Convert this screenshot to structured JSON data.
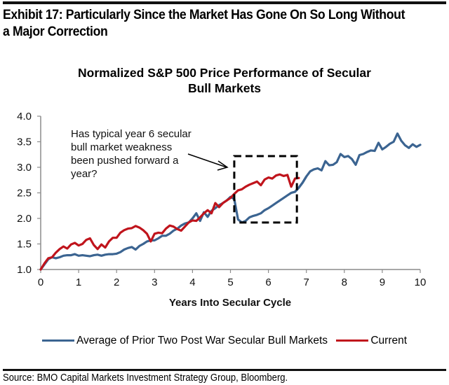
{
  "exhibit": {
    "title_line1": "Exhibit 17: Particularly Since the Market Has Gone On So Long Without",
    "title_line2": "a Major Correction"
  },
  "source": "Source: BMO Capital Markets Investment Strategy Group, Bloomberg.",
  "colors": {
    "blue": "#3b6491",
    "red": "#c0141c",
    "axis": "#8c8c8c",
    "box": "#000000"
  },
  "chart_data": {
    "type": "line",
    "title": "Normalized S&P 500 Price Performance of Secular Bull Markets",
    "title_line1": "Normalized S&P 500 Price Performance of Secular",
    "title_line2": "Bull Markets",
    "xlabel": "Years Into Secular Cycle",
    "ylabel": "",
    "xlim": [
      0,
      10
    ],
    "ylim": [
      1.0,
      4.0
    ],
    "xticks": [
      "0",
      "1",
      "2",
      "3",
      "4",
      "5",
      "6",
      "7",
      "8",
      "9",
      "10"
    ],
    "yticks": [
      "1.0",
      "1.5",
      "2.0",
      "2.5",
      "3.0",
      "3.5",
      "4.0"
    ],
    "grid": false,
    "legend_position": "bottom",
    "annotation": {
      "lines": [
        "Has typical year 6 secular",
        "bull market weakness",
        "been pushed forward a",
        "year?"
      ],
      "box_x_range": [
        5.1,
        6.75
      ],
      "box_y_range": [
        1.92,
        3.22
      ]
    },
    "series": [
      {
        "name": "Average of Prior Two Post War Secular Bull Markets",
        "color": "#3b6491",
        "x": [
          0,
          0.1,
          0.2,
          0.3,
          0.4,
          0.5,
          0.6,
          0.7,
          0.8,
          0.9,
          1.0,
          1.1,
          1.2,
          1.3,
          1.4,
          1.5,
          1.6,
          1.7,
          1.8,
          1.9,
          2.0,
          2.1,
          2.2,
          2.3,
          2.4,
          2.5,
          2.6,
          2.7,
          2.8,
          2.9,
          3.0,
          3.1,
          3.2,
          3.3,
          3.4,
          3.5,
          3.6,
          3.7,
          3.8,
          3.9,
          4.0,
          4.1,
          4.2,
          4.3,
          4.4,
          4.5,
          4.6,
          4.7,
          4.8,
          4.9,
          5.0,
          5.1,
          5.2,
          5.3,
          5.4,
          5.5,
          5.6,
          5.7,
          5.8,
          5.9,
          6.0,
          6.1,
          6.2,
          6.3,
          6.4,
          6.5,
          6.6,
          6.7,
          6.8,
          6.9,
          7.0,
          7.1,
          7.2,
          7.3,
          7.4,
          7.5,
          7.6,
          7.7,
          7.8,
          7.9,
          8.0,
          8.1,
          8.2,
          8.3,
          8.4,
          8.5,
          8.6,
          8.7,
          8.8,
          8.9,
          9.0,
          9.1,
          9.2,
          9.3,
          9.4,
          9.5,
          9.6,
          9.7,
          9.8,
          9.9,
          10.0
        ],
        "values": [
          1.0,
          1.1,
          1.2,
          1.24,
          1.22,
          1.24,
          1.27,
          1.28,
          1.28,
          1.3,
          1.27,
          1.28,
          1.27,
          1.26,
          1.28,
          1.29,
          1.27,
          1.29,
          1.3,
          1.3,
          1.31,
          1.34,
          1.39,
          1.42,
          1.44,
          1.39,
          1.46,
          1.5,
          1.55,
          1.57,
          1.57,
          1.61,
          1.66,
          1.66,
          1.7,
          1.76,
          1.8,
          1.86,
          1.9,
          1.92,
          2.0,
          2.1,
          1.95,
          2.12,
          2.03,
          2.15,
          2.2,
          2.26,
          2.3,
          2.35,
          2.42,
          2.38,
          1.98,
          1.92,
          1.95,
          2.02,
          2.05,
          2.07,
          2.1,
          2.16,
          2.2,
          2.25,
          2.3,
          2.35,
          2.4,
          2.45,
          2.5,
          2.52,
          2.6,
          2.7,
          2.82,
          2.92,
          2.96,
          2.98,
          2.94,
          3.12,
          3.04,
          3.05,
          3.1,
          3.26,
          3.2,
          3.22,
          3.16,
          3.05,
          3.24,
          3.26,
          3.3,
          3.33,
          3.32,
          3.48,
          3.35,
          3.4,
          3.46,
          3.5,
          3.66,
          3.52,
          3.43,
          3.38,
          3.45,
          3.4,
          3.44
        ]
      },
      {
        "name": "Current",
        "color": "#c0141c",
        "x": [
          0,
          0.1,
          0.2,
          0.3,
          0.4,
          0.5,
          0.6,
          0.7,
          0.8,
          0.9,
          1.0,
          1.1,
          1.2,
          1.3,
          1.4,
          1.5,
          1.6,
          1.7,
          1.8,
          1.9,
          2.0,
          2.1,
          2.2,
          2.3,
          2.4,
          2.5,
          2.6,
          2.7,
          2.8,
          2.9,
          3.0,
          3.1,
          3.2,
          3.3,
          3.4,
          3.5,
          3.6,
          3.7,
          3.8,
          3.9,
          4.0,
          4.1,
          4.2,
          4.3,
          4.4,
          4.5,
          4.6,
          4.7,
          4.8,
          4.9,
          5.0,
          5.1,
          5.2,
          5.3,
          5.4,
          5.5,
          5.6,
          5.7,
          5.8,
          5.9,
          6.0,
          6.1,
          6.2,
          6.3,
          6.4,
          6.5,
          6.6,
          6.7,
          6.8
        ],
        "values": [
          1.0,
          1.12,
          1.22,
          1.24,
          1.33,
          1.4,
          1.45,
          1.41,
          1.49,
          1.52,
          1.47,
          1.5,
          1.58,
          1.61,
          1.48,
          1.4,
          1.49,
          1.43,
          1.55,
          1.62,
          1.62,
          1.72,
          1.77,
          1.8,
          1.81,
          1.85,
          1.82,
          1.77,
          1.7,
          1.55,
          1.7,
          1.72,
          1.71,
          1.8,
          1.86,
          1.84,
          1.79,
          1.76,
          1.84,
          1.92,
          1.96,
          1.95,
          2.02,
          2.1,
          2.16,
          2.1,
          2.3,
          2.22,
          2.3,
          2.35,
          2.4,
          2.48,
          2.55,
          2.57,
          2.62,
          2.66,
          2.69,
          2.72,
          2.65,
          2.76,
          2.8,
          2.78,
          2.84,
          2.86,
          2.83,
          2.85,
          2.62,
          2.78,
          2.79
        ]
      }
    ]
  }
}
